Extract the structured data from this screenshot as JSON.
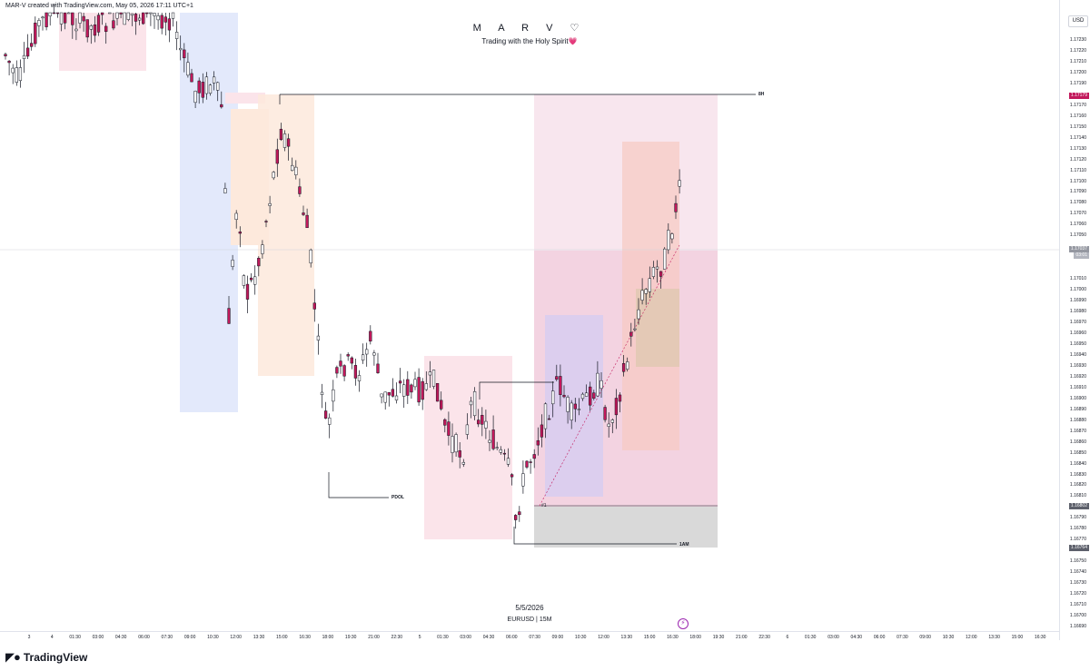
{
  "header": {
    "created_by": "MAR-V created with TradingView.com, May 05, 2026 17:11 UTC+1"
  },
  "chart": {
    "title": "M A R V ♡",
    "subtitle": "Trading with the Holy Spirit💗",
    "date_label": "5/5/2026",
    "symbol_label": "EURUSD | 15M",
    "currency": "USD"
  },
  "annotations": {
    "level_8h": "8H",
    "level_pdol": "PDOL",
    "level_1am": "1AM",
    "entry_marker": "#1"
  },
  "price_axis": {
    "labels": [
      "1.17230",
      "1.17220",
      "1.17210",
      "1.17200",
      "1.17190",
      "1.17170",
      "1.17160",
      "1.17150",
      "1.17140",
      "1.17130",
      "1.17120",
      "1.17110",
      "1.17100",
      "1.17090",
      "1.17080",
      "1.17070",
      "1.17060",
      "1.17050",
      "1.17010",
      "1.17000",
      "1.16990",
      "1.16980",
      "1.16970",
      "1.16960",
      "1.16950",
      "1.16940",
      "1.16930",
      "1.16920",
      "1.16910",
      "1.16900",
      "1.16890",
      "1.16880",
      "1.16870",
      "1.16860",
      "1.16850",
      "1.16840",
      "1.16830",
      "1.16820",
      "1.16810",
      "1.16790",
      "1.16780",
      "1.16770",
      "1.16750",
      "1.16740",
      "1.16730",
      "1.16720",
      "1.16710",
      "1.16700",
      "1.16690"
    ],
    "tag_high": "1.17179",
    "tag_current": "1.17037",
    "tag_current_time": "03:01",
    "tag_mid": "1.16802",
    "tag_low": "1.16764"
  },
  "time_axis": {
    "labels": [
      "3",
      "4",
      "01:30",
      "03:00",
      "04:30",
      "06:00",
      "07:30",
      "09:00",
      "10:30",
      "12:00",
      "13:30",
      "15:00",
      "16:30",
      "18:00",
      "19:30",
      "21:00",
      "22:30",
      "5",
      "01:30",
      "03:00",
      "04:30",
      "06:00",
      "07:30",
      "09:00",
      "10:30",
      "12:00",
      "13:30",
      "15:00",
      "16:30",
      "18:00",
      "19:30",
      "21:00",
      "22:30",
      "6",
      "01:30",
      "03:00",
      "04:30",
      "06:00",
      "07:30",
      "09:00",
      "10:30",
      "12:00",
      "13:30",
      "15:00",
      "16:30"
    ]
  },
  "footer": {
    "brand": "TradingView",
    "logo_icon": "tradingview-logo-icon"
  },
  "colors": {
    "bull": "#ffffff",
    "bear": "#c2185b",
    "wick": "#131722",
    "blue_zone": "#e3e9fb",
    "pink_zone": "#fbe4ea",
    "orange_zone": "#fde9dc",
    "purple_zone": "#d9cdef",
    "grey_zone": "#d9d9d9",
    "tag_high": "#c2185b",
    "tag_neutral": "#5d606b"
  }
}
